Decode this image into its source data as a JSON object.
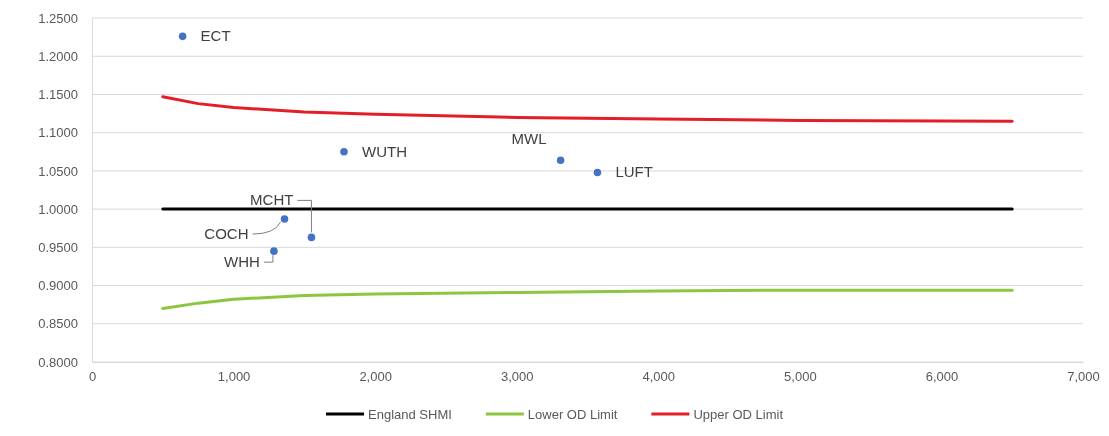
{
  "chart_data": {
    "type": "scatter",
    "xlim": [
      0,
      7000
    ],
    "xticks": [
      {
        "value": 0,
        "label": "0"
      },
      {
        "value": 1000,
        "label": "1,000"
      },
      {
        "value": 2000,
        "label": "2,000"
      },
      {
        "value": 3000,
        "label": "3,000"
      },
      {
        "value": 4000,
        "label": "4,000"
      },
      {
        "value": 5000,
        "label": "5,000"
      },
      {
        "value": 6000,
        "label": "6,000"
      },
      {
        "value": 7000,
        "label": "7,000"
      }
    ],
    "ylim": [
      0.8,
      1.25
    ],
    "yticks": [
      {
        "value": 0.8,
        "label": "0.8000"
      },
      {
        "value": 0.85,
        "label": "0.8500"
      },
      {
        "value": 0.9,
        "label": "0.9000"
      },
      {
        "value": 0.95,
        "label": "0.9500"
      },
      {
        "value": 1.0,
        "label": "1.0000"
      },
      {
        "value": 1.05,
        "label": "1.0500"
      },
      {
        "value": 1.1,
        "label": "1.1000"
      },
      {
        "value": 1.15,
        "label": "1.1500"
      },
      {
        "value": 1.2,
        "label": "1.2000"
      },
      {
        "value": 1.25,
        "label": "1.2500"
      }
    ],
    "grid": "y",
    "legend": "bottom",
    "series": [
      {
        "color": "#4472c4",
        "marker": "circle",
        "x": [
          640,
          1780,
          3310,
          3570,
          1550,
          1360,
          1285
        ],
        "values": [
          1.226,
          1.075,
          1.064,
          1.048,
          0.963,
          0.987,
          0.945
        ]
      },
      {
        "type": "line",
        "name": "England SHMI",
        "color": "#000000",
        "x": [
          500,
          6500
        ],
        "values": [
          1.0,
          1.0
        ]
      },
      {
        "type": "line",
        "name": "Lower OD Limit",
        "color": "#8cc63f",
        "x": [
          500,
          750,
          1000,
          1500,
          2000,
          3000,
          4000,
          5000,
          6500
        ],
        "values": [
          0.87,
          0.877,
          0.882,
          0.887,
          0.889,
          0.891,
          0.893,
          0.894,
          0.894
        ]
      },
      {
        "type": "line",
        "name": "Upper OD Limit",
        "color": "#e41e26",
        "x": [
          500,
          750,
          1000,
          1500,
          2000,
          3000,
          4000,
          5000,
          6500
        ],
        "values": [
          1.147,
          1.138,
          1.133,
          1.127,
          1.124,
          1.12,
          1.118,
          1.116,
          1.115
        ]
      }
    ],
    "annotations": [
      {
        "text": "ECT",
        "x": 640,
        "y": 1.226
      },
      {
        "text": "WUTH",
        "x": 1780,
        "y": 1.075
      },
      {
        "text": "MWL",
        "x": 3310,
        "y": 1.064
      },
      {
        "text": "LUFT",
        "x": 3570,
        "y": 1.048
      },
      {
        "text": "MCHT",
        "x": 1550,
        "y": 0.963
      },
      {
        "text": "COCH",
        "x": 1360,
        "y": 0.987
      },
      {
        "text": "WHH",
        "x": 1285,
        "y": 0.945
      }
    ]
  }
}
